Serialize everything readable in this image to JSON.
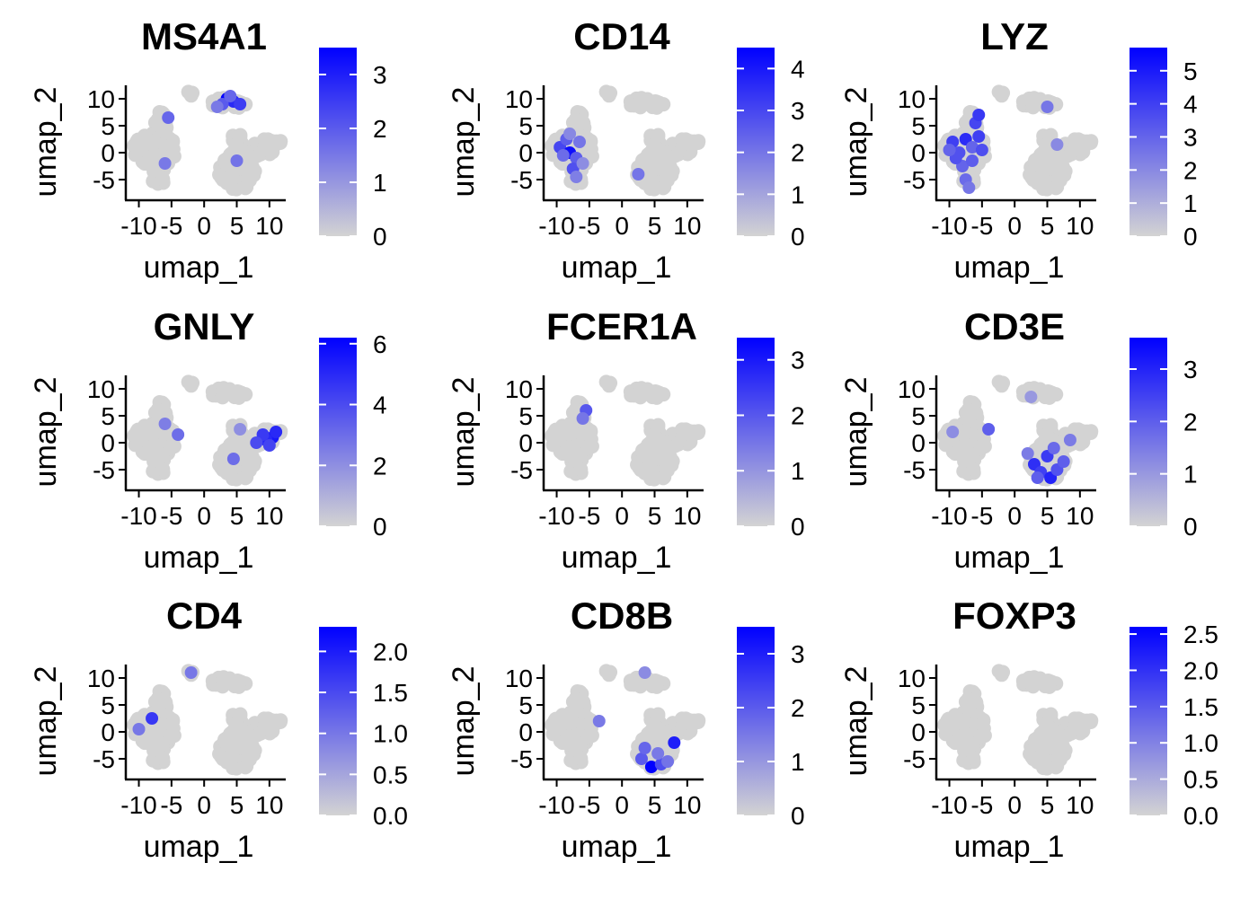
{
  "colors": {
    "low": "#d3d3d3",
    "high": "#0000ff",
    "axis": "#000000"
  },
  "chart_data": [
    {
      "type": "scatter",
      "title": "MS4A1",
      "xlabel": "umap_1",
      "ylabel": "umap_2",
      "xticks": [
        -10,
        -5,
        0,
        5,
        10
      ],
      "yticks": [
        -5,
        0,
        5,
        10
      ],
      "xlim": [
        -12,
        12.5
      ],
      "ylim": [
        -8.5,
        12.5
      ],
      "legend_min": 0,
      "legend_max": 3.5,
      "legend_ticks": [
        "0",
        "1",
        "2",
        "3"
      ],
      "legend_tick_values": [
        0,
        1,
        2,
        3
      ],
      "highlights": [
        {
          "x": 3.5,
          "y": 10.0,
          "value": 3.5
        },
        {
          "x": 4.5,
          "y": 9.5,
          "value": 2.8
        },
        {
          "x": 2.8,
          "y": 9.0,
          "value": 2.0
        },
        {
          "x": 5.5,
          "y": 9.0,
          "value": 2.5
        },
        {
          "x": 4.0,
          "y": 10.5,
          "value": 1.8
        },
        {
          "x": 2.0,
          "y": 8.5,
          "value": 1.5
        },
        {
          "x": -5.5,
          "y": 6.5,
          "value": 1.8
        },
        {
          "x": -6.0,
          "y": -2.0,
          "value": 1.5
        },
        {
          "x": 5.0,
          "y": -1.5,
          "value": 1.6
        }
      ]
    },
    {
      "type": "scatter",
      "title": "CD14",
      "xlabel": "umap_1",
      "ylabel": "umap_2",
      "xticks": [
        -10,
        -5,
        0,
        5,
        10
      ],
      "yticks": [
        -5,
        0,
        5,
        10
      ],
      "xlim": [
        -12,
        12.5
      ],
      "ylim": [
        -8.5,
        12.5
      ],
      "legend_min": 0,
      "legend_max": 4.5,
      "legend_ticks": [
        "0",
        "1",
        "2",
        "3",
        "4"
      ],
      "legend_tick_values": [
        0,
        1,
        2,
        3,
        4
      ],
      "highlights": [
        {
          "x": -9.5,
          "y": 1.0,
          "value": 3.0
        },
        {
          "x": -8.5,
          "y": 2.5,
          "value": 2.5
        },
        {
          "x": -8.0,
          "y": 0.0,
          "value": 4.2
        },
        {
          "x": -7.0,
          "y": -1.0,
          "value": 2.5
        },
        {
          "x": -6.5,
          "y": 2.0,
          "value": 2.0
        },
        {
          "x": -7.5,
          "y": -3.0,
          "value": 2.8
        },
        {
          "x": -7.0,
          "y": -4.5,
          "value": 1.8
        },
        {
          "x": -9.0,
          "y": -0.5,
          "value": 2.2
        },
        {
          "x": -6.0,
          "y": -2.0,
          "value": 1.5
        },
        {
          "x": -8.0,
          "y": 3.5,
          "value": 1.6
        },
        {
          "x": 2.5,
          "y": -4.0,
          "value": 2.0
        }
      ]
    },
    {
      "type": "scatter",
      "title": "LYZ",
      "xlabel": "umap_1",
      "ylabel": "umap_2",
      "xticks": [
        -10,
        -5,
        0,
        5,
        10
      ],
      "yticks": [
        -5,
        0,
        5,
        10
      ],
      "xlim": [
        -12,
        12.5
      ],
      "ylim": [
        -8.5,
        12.5
      ],
      "legend_min": 0,
      "legend_max": 5.7,
      "legend_ticks": [
        "0",
        "1",
        "2",
        "3",
        "4",
        "5"
      ],
      "legend_tick_values": [
        0,
        1,
        2,
        3,
        4,
        5
      ],
      "highlights": [
        {
          "x": -9.5,
          "y": 2.0,
          "value": 4.0
        },
        {
          "x": -8.5,
          "y": 0.0,
          "value": 3.5
        },
        {
          "x": -7.5,
          "y": 2.5,
          "value": 4.5
        },
        {
          "x": -6.5,
          "y": 1.0,
          "value": 3.0
        },
        {
          "x": -5.5,
          "y": 3.0,
          "value": 4.0
        },
        {
          "x": -6.0,
          "y": 5.5,
          "value": 3.8
        },
        {
          "x": -5.5,
          "y": 7.0,
          "value": 4.2
        },
        {
          "x": -8.0,
          "y": -2.5,
          "value": 3.0
        },
        {
          "x": -7.5,
          "y": -5.0,
          "value": 2.8
        },
        {
          "x": -7.0,
          "y": -6.5,
          "value": 2.5
        },
        {
          "x": -9.0,
          "y": -1.0,
          "value": 3.5
        },
        {
          "x": -6.5,
          "y": -1.5,
          "value": 3.2
        },
        {
          "x": -5.0,
          "y": 0.5,
          "value": 3.6
        },
        {
          "x": -10.0,
          "y": 0.5,
          "value": 3.0
        },
        {
          "x": 5.0,
          "y": 8.5,
          "value": 2.5
        },
        {
          "x": 6.5,
          "y": 1.5,
          "value": 2.0
        }
      ]
    },
    {
      "type": "scatter",
      "title": "GNLY",
      "xlabel": "umap_1",
      "ylabel": "umap_2",
      "xticks": [
        -10,
        -5,
        0,
        5,
        10
      ],
      "yticks": [
        -5,
        0,
        5,
        10
      ],
      "xlim": [
        -12,
        12.5
      ],
      "ylim": [
        -8.5,
        12.5
      ],
      "legend_min": 0,
      "legend_max": 6.2,
      "legend_ticks": [
        "0",
        "2",
        "4",
        "6"
      ],
      "legend_tick_values": [
        0,
        2,
        4,
        6
      ],
      "highlights": [
        {
          "x": 10.5,
          "y": 1.0,
          "value": 5.5
        },
        {
          "x": 9.5,
          "y": 0.5,
          "value": 5.0
        },
        {
          "x": 11.0,
          "y": 2.0,
          "value": 5.0
        },
        {
          "x": 9.0,
          "y": 1.5,
          "value": 4.5
        },
        {
          "x": 8.0,
          "y": 0.0,
          "value": 4.0
        },
        {
          "x": 10.0,
          "y": -0.5,
          "value": 4.2
        },
        {
          "x": -4.0,
          "y": 1.5,
          "value": 3.0
        },
        {
          "x": -6.0,
          "y": 3.5,
          "value": 2.5
        },
        {
          "x": 4.5,
          "y": -3.0,
          "value": 3.0
        },
        {
          "x": 5.5,
          "y": 2.5,
          "value": 2.0
        }
      ]
    },
    {
      "type": "scatter",
      "title": "FCER1A",
      "xlabel": "umap_1",
      "ylabel": "umap_2",
      "xticks": [
        -10,
        -5,
        0,
        5,
        10
      ],
      "yticks": [
        -5,
        0,
        5,
        10
      ],
      "xlim": [
        -12,
        12.5
      ],
      "ylim": [
        -8.5,
        12.5
      ],
      "legend_min": 0,
      "legend_max": 3.4,
      "legend_ticks": [
        "0",
        "1",
        "2",
        "3"
      ],
      "legend_tick_values": [
        0,
        1,
        2,
        3
      ],
      "highlights": [
        {
          "x": -5.5,
          "y": 6.0,
          "value": 2.0
        },
        {
          "x": -6.0,
          "y": 4.5,
          "value": 1.5
        }
      ]
    },
    {
      "type": "scatter",
      "title": "CD3E",
      "xlabel": "umap_1",
      "ylabel": "umap_2",
      "xticks": [
        -10,
        -5,
        0,
        5,
        10
      ],
      "yticks": [
        -5,
        0,
        5,
        10
      ],
      "xlim": [
        -12,
        12.5
      ],
      "ylim": [
        -8.5,
        12.5
      ],
      "legend_min": 0,
      "legend_max": 3.6,
      "legend_ticks": [
        "0",
        "1",
        "2",
        "3"
      ],
      "legend_tick_values": [
        0,
        1,
        2,
        3
      ],
      "highlights": [
        {
          "x": 3.0,
          "y": -4.0,
          "value": 2.8
        },
        {
          "x": 4.0,
          "y": -5.5,
          "value": 2.5
        },
        {
          "x": 5.5,
          "y": -6.5,
          "value": 3.0
        },
        {
          "x": 6.5,
          "y": -5.0,
          "value": 2.2
        },
        {
          "x": 7.5,
          "y": -3.5,
          "value": 2.0
        },
        {
          "x": 5.0,
          "y": -2.5,
          "value": 2.6
        },
        {
          "x": 3.5,
          "y": -6.5,
          "value": 2.0
        },
        {
          "x": 6.0,
          "y": -1.0,
          "value": 1.8
        },
        {
          "x": 2.0,
          "y": -2.0,
          "value": 1.5
        },
        {
          "x": 8.5,
          "y": 0.5,
          "value": 1.5
        },
        {
          "x": -4.0,
          "y": 2.5,
          "value": 2.0
        },
        {
          "x": -9.5,
          "y": 2.0,
          "value": 1.2
        },
        {
          "x": 2.5,
          "y": 8.5,
          "value": 1.0
        }
      ]
    },
    {
      "type": "scatter",
      "title": "CD4",
      "xlabel": "umap_1",
      "ylabel": "umap_2",
      "xticks": [
        -10,
        -5,
        0,
        5,
        10
      ],
      "yticks": [
        -5,
        0,
        5,
        10
      ],
      "xlim": [
        -12,
        12.5
      ],
      "ylim": [
        -8.5,
        12.5
      ],
      "legend_min": 0,
      "legend_max": 2.3,
      "legend_ticks": [
        "0.0",
        "0.5",
        "1.0",
        "1.5",
        "2.0"
      ],
      "legend_tick_values": [
        0,
        0.5,
        1.0,
        1.5,
        2.0
      ],
      "highlights": [
        {
          "x": -8.0,
          "y": 2.5,
          "value": 1.7
        },
        {
          "x": -10.0,
          "y": 0.5,
          "value": 1.0
        },
        {
          "x": -2.0,
          "y": 11.0,
          "value": 1.0
        }
      ]
    },
    {
      "type": "scatter",
      "title": "CD8B",
      "xlabel": "umap_1",
      "ylabel": "umap_2",
      "xticks": [
        -10,
        -5,
        0,
        5,
        10
      ],
      "yticks": [
        -5,
        0,
        5,
        10
      ],
      "xlim": [
        -12,
        12.5
      ],
      "ylim": [
        -8.5,
        12.5
      ],
      "legend_min": 0,
      "legend_max": 3.5,
      "legend_ticks": [
        "0",
        "1",
        "2",
        "3"
      ],
      "legend_tick_values": [
        0,
        1,
        2,
        3
      ],
      "highlights": [
        {
          "x": 4.5,
          "y": -6.5,
          "value": 3.5
        },
        {
          "x": 8.0,
          "y": -2.0,
          "value": 3.0
        },
        {
          "x": 3.0,
          "y": -5.0,
          "value": 2.0
        },
        {
          "x": 6.0,
          "y": -6.0,
          "value": 2.2
        },
        {
          "x": 5.5,
          "y": -4.0,
          "value": 1.5
        },
        {
          "x": 3.5,
          "y": -3.0,
          "value": 1.8
        },
        {
          "x": 7.0,
          "y": -5.5,
          "value": 1.6
        },
        {
          "x": -3.5,
          "y": 2.0,
          "value": 1.5
        },
        {
          "x": 3.5,
          "y": 11.0,
          "value": 1.2
        }
      ]
    },
    {
      "type": "scatter",
      "title": "FOXP3",
      "xlabel": "umap_1",
      "ylabel": "umap_2",
      "xticks": [
        -10,
        -5,
        0,
        5,
        10
      ],
      "yticks": [
        -5,
        0,
        5,
        10
      ],
      "xlim": [
        -12,
        12.5
      ],
      "ylim": [
        -8.5,
        12.5
      ],
      "legend_min": 0,
      "legend_max": 2.6,
      "legend_ticks": [
        "0.0",
        "0.5",
        "1.0",
        "1.5",
        "2.0",
        "2.5"
      ],
      "legend_tick_values": [
        0,
        0.5,
        1.0,
        1.5,
        2.0,
        2.5
      ],
      "highlights": []
    }
  ]
}
